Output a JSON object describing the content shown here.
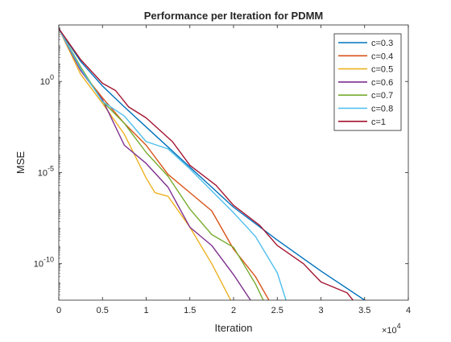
{
  "chart_data": {
    "type": "line",
    "title": "Performance per Iteration for PDMM",
    "xlabel": "Iteration",
    "ylabel": "MSE",
    "x_exponent_label": "×10",
    "x_exponent_power": "4",
    "x_ticks": [
      0,
      0.5,
      1,
      1.5,
      2,
      2.5,
      3,
      3.5,
      4
    ],
    "x_tick_labels": [
      "0",
      "0.5",
      "1",
      "1.5",
      "2",
      "2.5",
      "3",
      "3.5",
      "4"
    ],
    "y_ticks_log10": [
      0,
      -5,
      -10
    ],
    "y_tick_base": "10",
    "y_tick_exponents": [
      "0",
      "-5",
      "-10"
    ],
    "xlim": [
      0,
      4
    ],
    "ylim_log10": [
      -12,
      3.1
    ],
    "y_scale": "log",
    "grid": false,
    "legend_position": "top-right",
    "series": [
      {
        "name": "c=0.3",
        "color": "#0072BD",
        "x": [
          0,
          0.25,
          0.5,
          0.75,
          1.0,
          1.5,
          2.0,
          2.5,
          3.0,
          3.5,
          3.75
        ],
        "y_log10": [
          2.9,
          1.1,
          -0.25,
          -1.4,
          -2.5,
          -4.7,
          -6.9,
          -8.7,
          -10.4,
          -12.0,
          -12.8
        ]
      },
      {
        "name": "c=0.4",
        "color": "#D95319",
        "x": [
          0,
          0.25,
          0.5,
          0.75,
          1.0,
          1.25,
          1.5,
          1.75,
          2.0,
          2.25,
          2.5
        ],
        "y_log10": [
          2.9,
          0.6,
          -0.9,
          -2.3,
          -3.5,
          -5.1,
          -6.1,
          -7.1,
          -9.2,
          -10.7,
          -12.8
        ]
      },
      {
        "name": "c=0.5",
        "color": "#EDB120",
        "x": [
          0,
          0.25,
          0.5,
          0.75,
          1.0,
          1.1,
          1.25,
          1.5,
          1.75,
          2.0
        ],
        "y_log10": [
          2.9,
          0.4,
          -1.2,
          -2.9,
          -5.3,
          -6.1,
          -6.3,
          -8.0,
          -10.0,
          -12.3
        ]
      },
      {
        "name": "c=0.6",
        "color": "#7E2F8E",
        "x": [
          0,
          0.25,
          0.5,
          0.75,
          1.0,
          1.25,
          1.5,
          1.75,
          2.0,
          2.25
        ],
        "y_log10": [
          2.9,
          0.6,
          -1.0,
          -3.5,
          -4.5,
          -5.8,
          -8.0,
          -9.0,
          -10.6,
          -12.4
        ]
      },
      {
        "name": "c=0.7",
        "color": "#77AC30",
        "x": [
          0,
          0.25,
          0.5,
          0.75,
          1.0,
          1.25,
          1.5,
          1.75,
          2.0,
          2.25,
          2.4
        ],
        "y_log10": [
          2.9,
          0.8,
          -1.1,
          -2.3,
          -3.9,
          -5.2,
          -7.0,
          -8.4,
          -9.1,
          -11.1,
          -12.6
        ]
      },
      {
        "name": "c=0.8",
        "color": "#4DBEEE",
        "x": [
          0,
          0.25,
          0.5,
          0.75,
          1.0,
          1.25,
          1.5,
          1.75,
          2.0,
          2.25,
          2.5,
          2.6
        ],
        "y_log10": [
          2.9,
          0.7,
          -1.1,
          -1.9,
          -3.3,
          -3.7,
          -4.8,
          -6.0,
          -7.2,
          -8.5,
          -10.5,
          -12.0
        ]
      },
      {
        "name": "c=1",
        "color": "#A2142F",
        "x": [
          0,
          0.25,
          0.5,
          0.65,
          0.8,
          1.0,
          1.3,
          1.5,
          1.8,
          2.0,
          2.3,
          2.5,
          2.8,
          3.0,
          3.3,
          3.5
        ],
        "y_log10": [
          2.9,
          1.2,
          -0.1,
          -0.5,
          -1.4,
          -2.0,
          -3.3,
          -4.6,
          -5.7,
          -6.8,
          -7.9,
          -9.0,
          -10.0,
          -11.0,
          -11.6,
          -12.8
        ]
      }
    ]
  }
}
